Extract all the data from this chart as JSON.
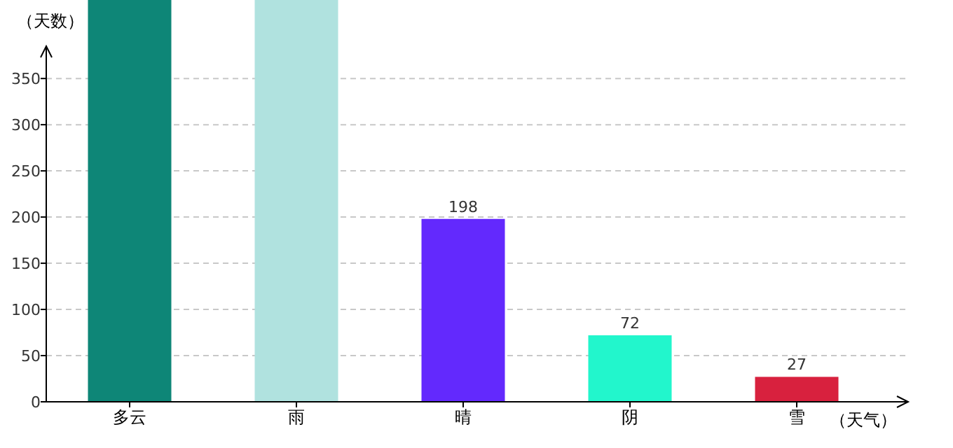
{
  "chart_data": {
    "type": "bar",
    "ylabel": "（天数）",
    "xlabel": "（天气）",
    "categories": [
      "多云",
      "雨",
      "晴",
      "阴",
      "雪"
    ],
    "values": [
      435,
      435,
      198,
      72,
      27
    ],
    "colors": [
      "#0e8677",
      "#b0e2df",
      "#6329fd",
      "#22f6cc",
      "#d8213e"
    ],
    "value_labels": [
      null,
      null,
      "198",
      "72",
      "27"
    ],
    "ylim": [
      0,
      435
    ],
    "yticks": [
      0,
      50,
      100,
      150,
      200,
      250,
      300,
      350
    ],
    "grid": "y"
  }
}
